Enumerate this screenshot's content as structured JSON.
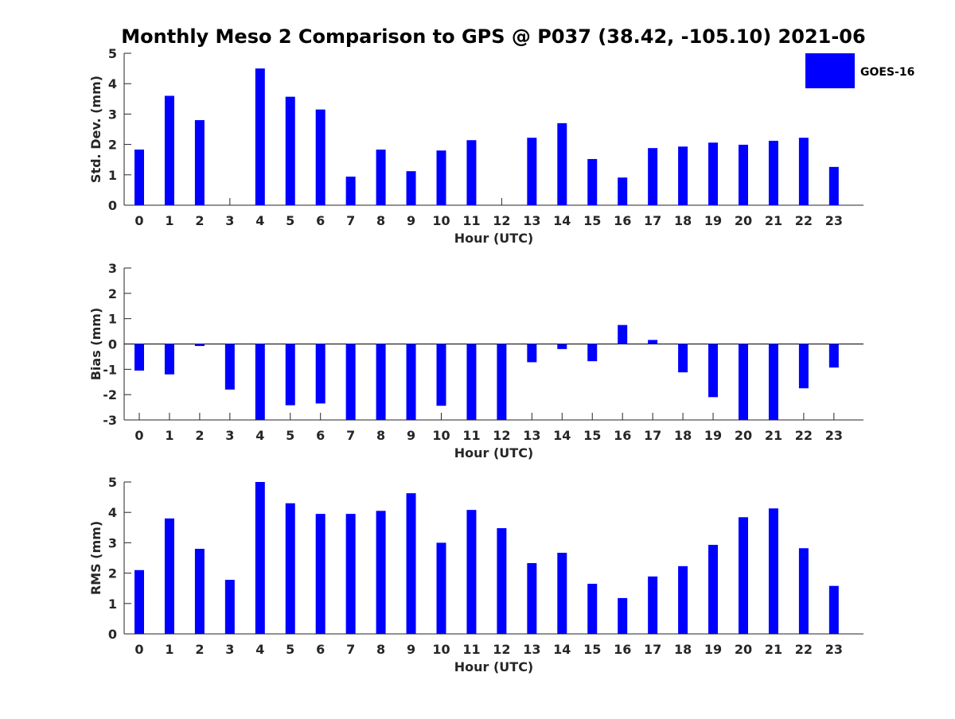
{
  "chart_data": {
    "type": "bar",
    "title": "Monthly Meso 2 Comparison to GPS @ P037 (38.42, -105.10) 2021-06",
    "bar_color": "#0000ff",
    "legend": {
      "entries": [
        "GOES-16"
      ],
      "placement": "top-right"
    },
    "categories": [
      "0",
      "1",
      "2",
      "3",
      "4",
      "5",
      "6",
      "7",
      "8",
      "9",
      "10",
      "11",
      "12",
      "13",
      "14",
      "15",
      "16",
      "17",
      "18",
      "19",
      "20",
      "21",
      "22",
      "23"
    ],
    "panels": [
      {
        "xlabel": "Hour (UTC)",
        "ylabel": "Std. Dev. (mm)",
        "ylim": [
          0,
          5
        ],
        "yticks": [
          "0",
          "1",
          "2",
          "3",
          "4",
          "5"
        ],
        "series": [
          {
            "name": "GOES-16",
            "values": [
              1.83,
              3.6,
              2.8,
              0,
              4.5,
              3.57,
              3.15,
              0.94,
              1.83,
              1.12,
              1.8,
              2.14,
              0,
              2.22,
              2.7,
              1.52,
              0.91,
              1.88,
              1.93,
              2.06,
              1.99,
              2.12,
              2.22,
              1.26
            ]
          }
        ]
      },
      {
        "xlabel": "Hour (UTC)",
        "ylabel": "Bias (mm)",
        "ylim": [
          -3,
          3
        ],
        "yticks": [
          "-3",
          "-2",
          "-1",
          "0",
          "1",
          "2",
          "3"
        ],
        "series": [
          {
            "name": "GOES-16",
            "values": [
              -1.05,
              -1.2,
              -0.08,
              -1.8,
              -3,
              -2.42,
              -2.35,
              -3,
              -3,
              -3,
              -2.44,
              -3,
              -3,
              -0.72,
              -0.2,
              -0.68,
              0.75,
              0.16,
              -1.12,
              -2.1,
              -3,
              -3,
              -1.75,
              -0.93
            ]
          }
        ]
      },
      {
        "xlabel": "Hour (UTC)",
        "ylabel": "RMS (mm)",
        "ylim": [
          0,
          5
        ],
        "yticks": [
          "0",
          "1",
          "2",
          "3",
          "4",
          "5"
        ],
        "series": [
          {
            "name": "GOES-16",
            "values": [
              2.1,
              3.8,
              2.8,
              1.78,
              5,
              4.3,
              3.95,
              3.95,
              4.05,
              4.63,
              3.0,
              4.08,
              3.48,
              2.33,
              2.67,
              1.65,
              1.18,
              1.89,
              2.23,
              2.93,
              3.84,
              4.13,
              2.82,
              1.58
            ]
          }
        ]
      }
    ]
  }
}
